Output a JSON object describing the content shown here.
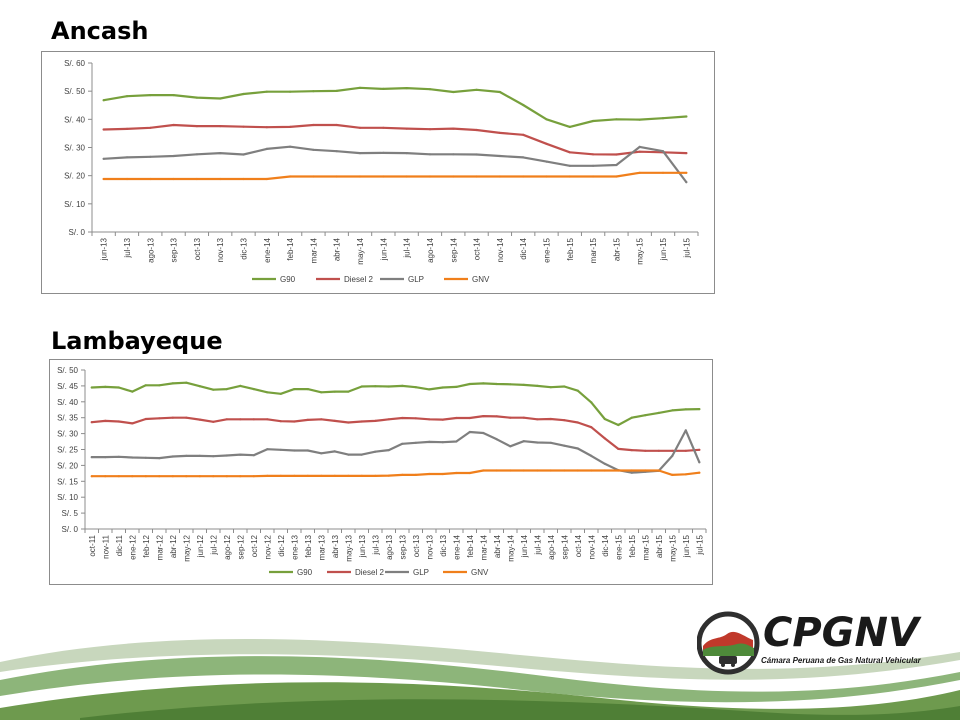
{
  "charts": [
    {
      "section_title": "Ancash",
      "chart_data": {
        "type": "line",
        "categories": [
          "jun-13",
          "jul-13",
          "ago-13",
          "sep-13",
          "oct-13",
          "nov-13",
          "dic-13",
          "ene-14",
          "feb-14",
          "mar-14",
          "abr-14",
          "may-14",
          "jun-14",
          "jul-14",
          "ago-14",
          "sep-14",
          "oct-14",
          "nov-14",
          "dic-14",
          "ene-15",
          "feb-15",
          "mar-15",
          "abr-15",
          "may-15",
          "jun-15",
          "jul-15"
        ],
        "yticks": [
          "S/. 0",
          "S/. 10",
          "S/. 20",
          "S/. 30",
          "S/. 40",
          "S/. 50",
          "S/. 60"
        ],
        "ylim": [
          0,
          60
        ],
        "legend_position": "bottom",
        "grid": false,
        "series": [
          {
            "name": "G90",
            "color": "#77a03c",
            "values": [
              46.8,
              48.2,
              48.6,
              48.6,
              47.7,
              47.4,
              49.0,
              49.8,
              49.8,
              50.0,
              50.1,
              51.2,
              50.8,
              51.1,
              50.7,
              49.7,
              50.5,
              49.7,
              45.1,
              40.0,
              37.3,
              39.4,
              40.0,
              39.9,
              40.4,
              41.0
            ]
          },
          {
            "name": "Diesel 2",
            "color": "#c0504d",
            "values": [
              36.4,
              36.6,
              37.0,
              38.0,
              37.6,
              37.6,
              37.4,
              37.2,
              37.3,
              38.0,
              38.0,
              37.0,
              37.0,
              36.7,
              36.5,
              36.7,
              36.2,
              35.2,
              34.5,
              31.3,
              28.3,
              27.6,
              27.5,
              28.5,
              28.3,
              28.0
            ]
          },
          {
            "name": "GLP",
            "color": "#7f7f7f",
            "values": [
              26.0,
              26.5,
              26.7,
              27.0,
              27.6,
              28.0,
              27.5,
              29.5,
              30.3,
              29.2,
              28.7,
              28.0,
              28.1,
              28.0,
              27.6,
              27.6,
              27.5,
              27.0,
              26.5,
              25.0,
              23.5,
              23.5,
              23.8,
              30.2,
              28.7,
              17.7
            ]
          },
          {
            "name": "GNV",
            "color": "#f07f1b",
            "values": [
              18.8,
              18.8,
              18.8,
              18.8,
              18.8,
              18.8,
              18.8,
              18.8,
              19.7,
              19.7,
              19.7,
              19.7,
              19.7,
              19.7,
              19.7,
              19.7,
              19.7,
              19.7,
              19.7,
              19.7,
              19.7,
              19.7,
              19.7,
              21.0,
              21.0,
              21.0
            ]
          }
        ]
      }
    },
    {
      "section_title": "Lambayeque",
      "chart_data": {
        "type": "line",
        "categories": [
          "oct-11",
          "nov-11",
          "dic-11",
          "ene-12",
          "feb-12",
          "mar-12",
          "abr-12",
          "may-12",
          "jun-12",
          "jul-12",
          "ago-12",
          "sep-12",
          "oct-12",
          "nov-12",
          "dic-12",
          "ene-13",
          "feb-13",
          "mar-13",
          "abr-13",
          "may-13",
          "jun-13",
          "jul-13",
          "ago-13",
          "sep-13",
          "oct-13",
          "nov-13",
          "dic-13",
          "ene-14",
          "feb-14",
          "mar-14",
          "abr-14",
          "may-14",
          "jun-14",
          "jul-14",
          "ago-14",
          "sep-14",
          "oct-14",
          "nov-14",
          "dic-14",
          "ene-15",
          "feb-15",
          "mar-15",
          "abr-15",
          "may-15",
          "jun-15",
          "jul-15"
        ],
        "yticks": [
          "S/. 0",
          "S/. 5",
          "S/. 10",
          "S/. 15",
          "S/. 20",
          "S/. 25",
          "S/. 30",
          "S/. 35",
          "S/. 40",
          "S/. 45",
          "S/. 50"
        ],
        "ylim": [
          0,
          50
        ],
        "legend_position": "bottom",
        "grid": false,
        "series": [
          {
            "name": "G90",
            "color": "#77a03c",
            "values": [
              44.5,
              44.7,
              44.5,
              43.2,
              45.2,
              45.2,
              45.8,
              46.0,
              44.9,
              43.8,
              44.0,
              45.0,
              44.0,
              43.0,
              42.5,
              44.0,
              44.0,
              43.0,
              43.2,
              43.2,
              44.8,
              44.9,
              44.8,
              45.0,
              44.6,
              43.9,
              44.5,
              44.7,
              45.6,
              45.8,
              45.6,
              45.5,
              45.3,
              45.0,
              44.6,
              44.8,
              43.5,
              39.8,
              34.6,
              32.7,
              35.0,
              35.8,
              36.5,
              37.3,
              37.6,
              37.7
            ]
          },
          {
            "name": "Diesel 2",
            "color": "#c0504d",
            "values": [
              33.6,
              34.0,
              33.8,
              33.2,
              34.6,
              34.8,
              35.0,
              35.0,
              34.4,
              33.7,
              34.5,
              34.5,
              34.5,
              34.5,
              33.9,
              33.8,
              34.3,
              34.5,
              34.0,
              33.5,
              33.8,
              34.0,
              34.5,
              34.9,
              34.8,
              34.5,
              34.4,
              34.9,
              34.9,
              35.5,
              35.4,
              35.0,
              35.0,
              34.5,
              34.6,
              34.2,
              33.5,
              32.0,
              28.5,
              25.2,
              24.8,
              24.6,
              24.6,
              24.6,
              24.6,
              24.9
            ]
          },
          {
            "name": "GLP",
            "color": "#7f7f7f",
            "values": [
              22.6,
              22.6,
              22.7,
              22.5,
              22.4,
              22.3,
              22.8,
              23.0,
              23.0,
              22.9,
              23.1,
              23.4,
              23.2,
              25.1,
              24.9,
              24.7,
              24.7,
              23.8,
              24.4,
              23.4,
              23.4,
              24.3,
              24.8,
              26.8,
              27.1,
              27.4,
              27.3,
              27.5,
              30.5,
              30.2,
              28.2,
              26.0,
              27.6,
              27.2,
              27.1,
              26.2,
              25.3,
              23.0,
              20.5,
              18.5,
              17.7,
              18.0,
              18.3,
              23.0,
              31.0,
              21.0
            ]
          },
          {
            "name": "GNV",
            "color": "#f07f1b",
            "values": [
              16.6,
              16.6,
              16.6,
              16.6,
              16.6,
              16.6,
              16.6,
              16.6,
              16.6,
              16.6,
              16.6,
              16.6,
              16.6,
              16.7,
              16.7,
              16.7,
              16.7,
              16.7,
              16.7,
              16.7,
              16.7,
              16.7,
              16.8,
              17.0,
              17.0,
              17.3,
              17.3,
              17.6,
              17.6,
              18.4,
              18.4,
              18.4,
              18.4,
              18.4,
              18.4,
              18.4,
              18.4,
              18.4,
              18.4,
              18.4,
              18.4,
              18.4,
              18.4,
              17.0,
              17.2,
              17.7
            ]
          }
        ]
      }
    }
  ],
  "logo": {
    "wordmark": "CPGNV",
    "subtitle": "Cámara Peruana de Gas Natural Vehicular"
  },
  "colors": {
    "axis": "#8c8c8c",
    "text": "#404040",
    "footer_green": "#6e9a4e",
    "footer_light": "#c8d7bd",
    "logo_red": "#c0392b",
    "logo_green": "#4e8a3a"
  }
}
